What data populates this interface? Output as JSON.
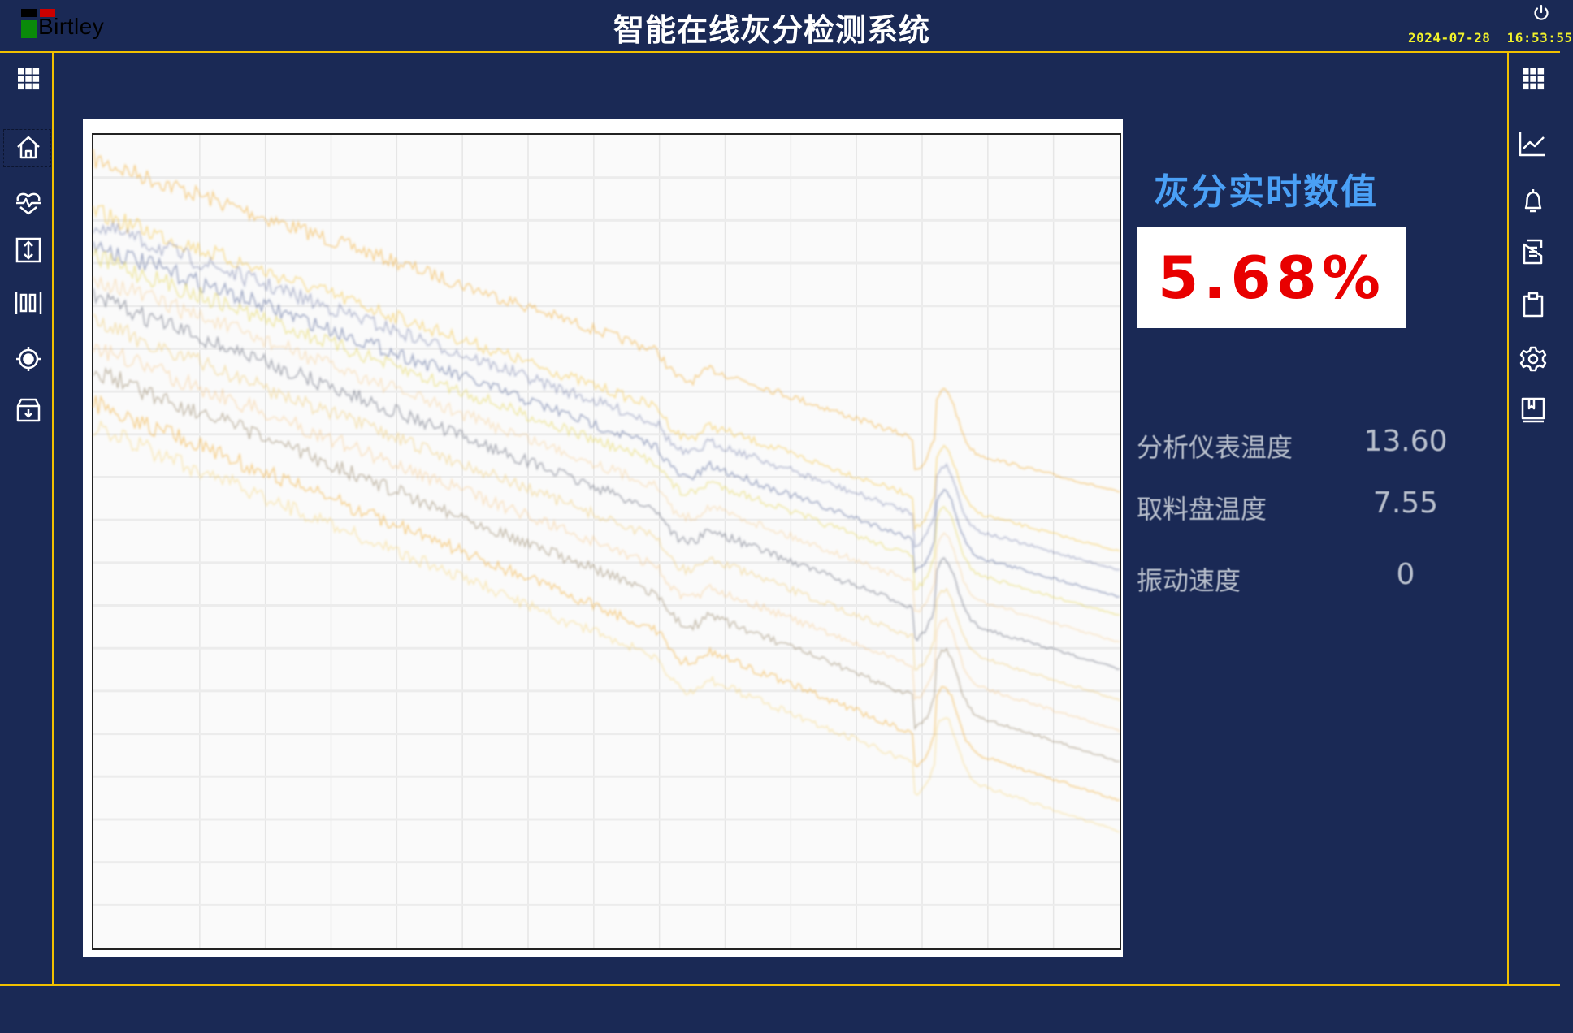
{
  "header": {
    "logo_text": "Birtley",
    "title": "智能在线灰分检测系统",
    "datetime": "2024-07-28  16:53:55",
    "power_icon": "power-icon"
  },
  "left_sidebar": {
    "items": [
      {
        "icon": "grid-menu-icon"
      },
      {
        "icon": "home-icon",
        "selected": true
      },
      {
        "icon": "heart-pulse-icon"
      },
      {
        "icon": "vertical-expand-icon"
      },
      {
        "icon": "barcode-icon"
      },
      {
        "icon": "target-icon"
      },
      {
        "icon": "archive-download-icon"
      }
    ]
  },
  "right_sidebar": {
    "items": [
      {
        "icon": "grid-menu-icon"
      },
      {
        "icon": "line-chart-icon"
      },
      {
        "icon": "bell-icon"
      },
      {
        "icon": "document-icon"
      },
      {
        "icon": "clipboard-icon"
      },
      {
        "icon": "gear-icon"
      },
      {
        "icon": "book-icon"
      }
    ]
  },
  "spectrum_chart": {
    "series_colors": [
      "#f3b03c",
      "#f6c84a",
      "#3a4a8a",
      "#5a6a9a",
      "#e8d860",
      "#f5c070",
      "#6a7080",
      "#f0d080",
      "#f7b860",
      "#9a8a70"
    ]
  },
  "panel": {
    "title": "灰分实时数值",
    "ash_value": "5.68%",
    "readings": [
      {
        "label": "分析仪表温度",
        "value": "13.60"
      },
      {
        "label": "取料盘温度",
        "value": "7.55"
      },
      {
        "label": "振动速度",
        "value": "0"
      }
    ]
  },
  "colors": {
    "background": "#1a2955",
    "divider": "#f0c000",
    "panel_title": "#4aa0f6",
    "ash_value": "#e80000",
    "datetime": "#f2f22a"
  }
}
